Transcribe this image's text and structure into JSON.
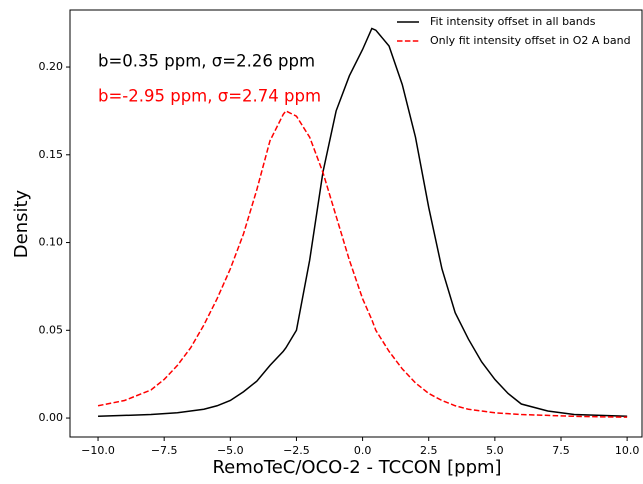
{
  "chart_data": {
    "type": "line",
    "xlabel": "RemoTeC/OCO-2 - TCCON [ppm]",
    "ylabel": "Density",
    "annotations": [
      {
        "text": "b=0.35 ppm, σ=2.26 ppm",
        "color": "#000000"
      },
      {
        "text": "b=-2.95 ppm, σ=2.74 ppm",
        "color": "#ff0000"
      }
    ],
    "legend": "upper right",
    "x": [
      -10,
      -9,
      -8,
      -7.5,
      -7,
      -6.5,
      -6,
      -5.5,
      -5,
      -4.5,
      -4,
      -3.5,
      -3,
      -2.9,
      -2.5,
      -2,
      -1.5,
      -1,
      -0.5,
      0,
      0.35,
      0.5,
      1,
      1.5,
      2,
      2.5,
      3,
      3.5,
      4,
      4.5,
      5,
      5.5,
      6,
      7,
      8,
      9,
      10
    ],
    "series": [
      {
        "name": "Fit intensity offset in all bands",
        "color": "#000000",
        "dash": "solid",
        "values": [
          0.001,
          0.0015,
          0.002,
          0.0025,
          0.003,
          0.004,
          0.005,
          0.007,
          0.01,
          0.015,
          0.021,
          0.03,
          0.038,
          0.04,
          0.05,
          0.09,
          0.14,
          0.175,
          0.195,
          0.21,
          0.222,
          0.221,
          0.212,
          0.19,
          0.16,
          0.12,
          0.085,
          0.06,
          0.045,
          0.032,
          0.022,
          0.014,
          0.008,
          0.004,
          0.002,
          0.0015,
          0.001
        ]
      },
      {
        "name": "Only fit intensity offset in O2 A band",
        "color": "#ff0000",
        "dash": "dashed",
        "values": [
          0.007,
          0.01,
          0.016,
          0.022,
          0.03,
          0.04,
          0.053,
          0.068,
          0.085,
          0.105,
          0.13,
          0.158,
          0.173,
          0.175,
          0.172,
          0.16,
          0.14,
          0.115,
          0.09,
          0.068,
          0.056,
          0.05,
          0.038,
          0.028,
          0.02,
          0.014,
          0.01,
          0.007,
          0.005,
          0.004,
          0.003,
          0.0025,
          0.002,
          0.0015,
          0.001,
          0.0007,
          0.0005
        ]
      }
    ],
    "xlim": [
      -11.06,
      10.6
    ],
    "ylim": [
      -0.0108,
      0.2325
    ],
    "xticks": [
      {
        "value": -10,
        "label": "−10.0"
      },
      {
        "value": -7.5,
        "label": "−7.5"
      },
      {
        "value": -5,
        "label": "−5.0"
      },
      {
        "value": -2.5,
        "label": "−2.5"
      },
      {
        "value": 0,
        "label": "0.0"
      },
      2.5,
      {
        "value": 5,
        "label": "5.0"
      },
      7.5,
      {
        "value": 10,
        "label": "10.0"
      }
    ],
    "yticks": [
      {
        "value": 0,
        "label": "0.00"
      },
      0.05,
      {
        "value": 0.1,
        "label": "0.10"
      },
      0.15,
      {
        "value": 0.2,
        "label": "0.20"
      }
    ],
    "grid": false
  }
}
